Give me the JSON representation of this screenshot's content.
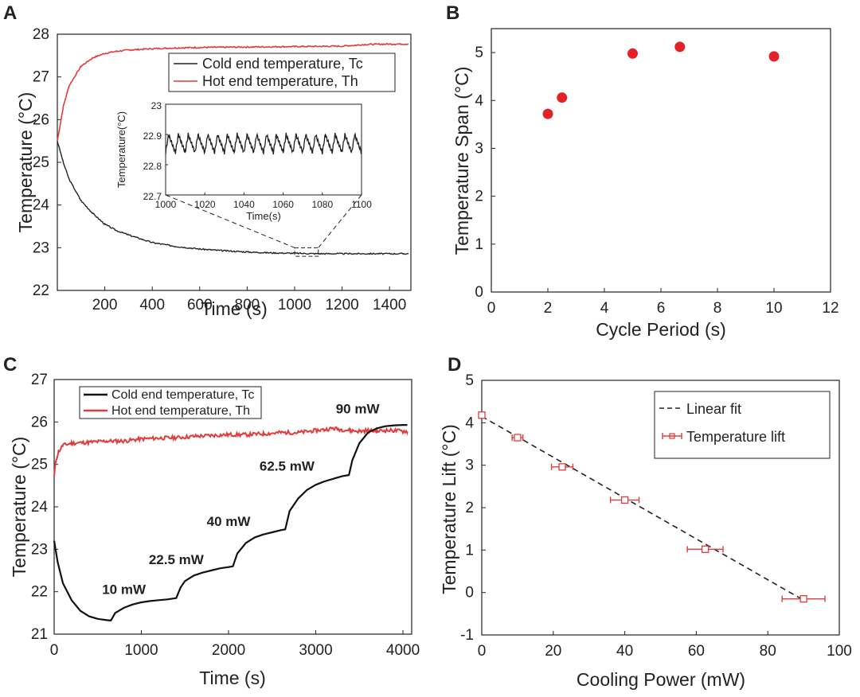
{
  "chart_data": [
    {
      "panel": "A",
      "type": "line",
      "xlabel": "Time (s)",
      "ylabel": "Temperature (°C)",
      "xlim": [
        0,
        1490
      ],
      "ylim": [
        22,
        28
      ],
      "xticks": [
        200,
        400,
        600,
        800,
        1000,
        1200,
        1400
      ],
      "yticks": [
        22,
        23,
        24,
        25,
        26,
        27,
        28
      ],
      "legend": {
        "placement": "top-right",
        "entries": [
          "Cold end temperature, Tc",
          "Hot end temperature, Th"
        ]
      },
      "series": [
        {
          "name": "Cold end temperature, Tc",
          "color": "#222222",
          "x": [
            0,
            25,
            50,
            100,
            150,
            200,
            250,
            300,
            400,
            500,
            600,
            700,
            800,
            900,
            1000,
            1100,
            1200,
            1300,
            1400,
            1480
          ],
          "y": [
            25.5,
            25.0,
            24.6,
            24.1,
            23.8,
            23.55,
            23.4,
            23.3,
            23.12,
            23.03,
            22.97,
            22.93,
            22.9,
            22.88,
            22.87,
            22.86,
            22.86,
            22.86,
            22.86,
            22.86
          ]
        },
        {
          "name": "Hot end temperature, Th",
          "color": "#e33b3b",
          "x": [
            0,
            25,
            50,
            100,
            150,
            200,
            250,
            300,
            400,
            500,
            600,
            800,
            1000,
            1200,
            1300,
            1400,
            1480
          ],
          "y": [
            25.5,
            26.3,
            26.8,
            27.25,
            27.45,
            27.55,
            27.6,
            27.63,
            27.66,
            27.68,
            27.69,
            27.7,
            27.71,
            27.72,
            27.76,
            27.77,
            27.77
          ]
        }
      ],
      "zoom_box": {
        "x": [
          1000,
          1100
        ],
        "y": [
          22.8,
          23.0
        ]
      },
      "inset": {
        "type": "line",
        "xlabel": "Time(s)",
        "ylabel": "Temperature(°C)",
        "xlim": [
          1000,
          1100
        ],
        "ylim": [
          22.7,
          23
        ],
        "xticks": [
          1000,
          1020,
          1040,
          1060,
          1080,
          1100
        ],
        "yticks": [
          22.7,
          22.8,
          22.9,
          23
        ],
        "series": [
          {
            "name": "Cold end temperature",
            "color": "#222222",
            "period_s": 5,
            "min": 22.84,
            "max": 22.9
          }
        ]
      }
    },
    {
      "panel": "B",
      "type": "scatter",
      "xlabel": "Cycle Period (s)",
      "ylabel": "Temperature Span (°C)",
      "xlim": [
        0,
        12
      ],
      "ylim": [
        0,
        5.5
      ],
      "xticks": [
        0,
        2,
        4,
        6,
        8,
        10,
        12
      ],
      "yticks": [
        0,
        1,
        2,
        3,
        4,
        5
      ],
      "series": [
        {
          "name": "Temperature span",
          "color": "#e32227",
          "x": [
            2,
            2.5,
            5,
            6.67,
            10
          ],
          "y": [
            3.72,
            4.06,
            4.98,
            5.12,
            4.92
          ]
        }
      ]
    },
    {
      "panel": "C",
      "type": "line",
      "xlabel": "Time (s)",
      "ylabel": "Temperature (°C)",
      "xlim": [
        0,
        4100
      ],
      "ylim": [
        21,
        27
      ],
      "xticks": [
        0,
        1000,
        2000,
        3000,
        4000
      ],
      "yticks": [
        21,
        22,
        23,
        24,
        25,
        26,
        27
      ],
      "legend": {
        "placement": "top-left",
        "entries": [
          "Cold end temperature, Tc",
          "Hot end temperature, Th"
        ]
      },
      "annotations": [
        {
          "text": "10 mW",
          "x": 800,
          "y": 21.95
        },
        {
          "text": "22.5 mW",
          "x": 1400,
          "y": 22.65
        },
        {
          "text": "40 mW",
          "x": 2000,
          "y": 23.55
        },
        {
          "text": "62.5 mW",
          "x": 2670,
          "y": 24.85
        },
        {
          "text": "90 mW",
          "x": 3480,
          "y": 26.2
        }
      ],
      "series": [
        {
          "name": "Cold end temperature, Tc",
          "color": "#111111",
          "x": [
            0,
            40,
            100,
            200,
            300,
            400,
            500,
            600,
            650,
            700,
            800,
            900,
            1000,
            1100,
            1200,
            1300,
            1400,
            1450,
            1500,
            1600,
            1700,
            1800,
            1900,
            2000,
            2050,
            2100,
            2200,
            2300,
            2400,
            2500,
            2600,
            2650,
            2700,
            2800,
            2900,
            3000,
            3100,
            3200,
            3300,
            3380,
            3420,
            3500,
            3600,
            3700,
            3800,
            3900,
            4000,
            4050
          ],
          "y": [
            23.2,
            22.7,
            22.2,
            21.8,
            21.55,
            21.42,
            21.36,
            21.33,
            21.32,
            21.5,
            21.62,
            21.7,
            21.75,
            21.78,
            21.8,
            21.82,
            21.85,
            22.1,
            22.25,
            22.38,
            22.45,
            22.5,
            22.55,
            22.58,
            22.6,
            22.9,
            23.15,
            23.28,
            23.35,
            23.4,
            23.45,
            23.47,
            23.9,
            24.2,
            24.4,
            24.52,
            24.6,
            24.66,
            24.72,
            24.75,
            25.1,
            25.5,
            25.75,
            25.85,
            25.9,
            25.92,
            25.93,
            25.93
          ]
        },
        {
          "name": "Hot end temperature, Th",
          "color": "#e33b3b",
          "x": [
            0,
            20,
            50,
            100,
            200,
            400,
            600,
            800,
            1000,
            1200,
            1400,
            1600,
            1800,
            2000,
            2200,
            2400,
            2600,
            2800,
            3000,
            3100,
            3200,
            3300,
            3400,
            3500,
            3600,
            3700,
            3800,
            3900,
            4000,
            4050
          ],
          "y": [
            24.7,
            25.1,
            25.3,
            25.45,
            25.5,
            25.52,
            25.55,
            25.55,
            25.6,
            25.62,
            25.63,
            25.66,
            25.68,
            25.7,
            25.7,
            25.72,
            25.75,
            25.75,
            25.8,
            25.82,
            25.85,
            25.82,
            25.8,
            25.78,
            25.8,
            25.78,
            25.8,
            25.8,
            25.78,
            25.78
          ]
        }
      ]
    },
    {
      "panel": "D",
      "type": "scatter",
      "xlabel": "Cooling Power (mW)",
      "ylabel": "Temperature Lift (°C)",
      "xlim": [
        0,
        100
      ],
      "ylim": [
        -1,
        5
      ],
      "xticks": [
        0,
        20,
        40,
        60,
        80,
        100
      ],
      "yticks": [
        -1,
        0,
        1,
        2,
        3,
        4,
        5
      ],
      "legend": {
        "placement": "top-right",
        "entries": [
          "Linear fit",
          "Temperature lift"
        ]
      },
      "series": [
        {
          "name": "Temperature lift",
          "color": "#e33b3b",
          "x": [
            0,
            10,
            22.5,
            40,
            62.5,
            90
          ],
          "y": [
            4.18,
            3.65,
            2.96,
            2.18,
            1.02,
            -0.15
          ],
          "xerr": [
            0,
            1.5,
            3,
            4,
            5,
            6
          ]
        },
        {
          "name": "Linear fit",
          "color": "#222222",
          "style": "dashed",
          "x": [
            0,
            90
          ],
          "y": [
            4.15,
            -0.18
          ]
        }
      ]
    }
  ]
}
